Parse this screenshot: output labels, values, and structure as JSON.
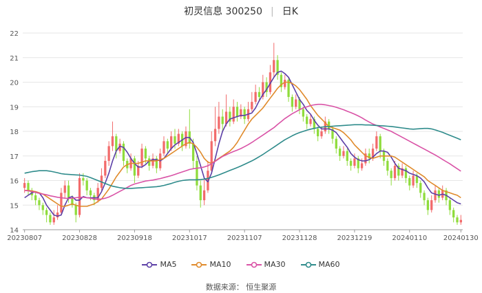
{
  "title": {
    "name": "初灵信息 300250",
    "period": "日K"
  },
  "legend": [
    {
      "label": "MA5",
      "color": "#5b3ea6"
    },
    {
      "label": "MA10",
      "color": "#e08a2a"
    },
    {
      "label": "MA30",
      "color": "#d952a6"
    },
    {
      "label": "MA60",
      "color": "#2e8b8b"
    }
  ],
  "source": "数据来源： 恒生聚源",
  "colors": {
    "up": "#f26b6b",
    "down": "#8fdc3c",
    "grid": "#e6e6e6",
    "axis": "#999999"
  },
  "chart_data": {
    "type": "candlestick",
    "y_ticks": [
      14,
      15,
      16,
      17,
      18,
      19,
      20,
      21,
      22
    ],
    "ylim": [
      14,
      22
    ],
    "x_tick_labels": [
      "20230807",
      "20230828",
      "20230918",
      "20231017",
      "20231107",
      "20231128",
      "20231219",
      "20240110",
      "20240130"
    ],
    "x_tick_index": [
      0,
      15,
      30,
      45,
      60,
      75,
      90,
      105,
      119
    ],
    "candles": [
      [
        15.7,
        15.9,
        15.5,
        16.1
      ],
      [
        15.9,
        15.6,
        15.4,
        16.0
      ],
      [
        15.6,
        15.4,
        15.2,
        15.7
      ],
      [
        15.4,
        15.2,
        15.0,
        15.5
      ],
      [
        15.2,
        15.0,
        14.8,
        15.3
      ],
      [
        15.0,
        14.8,
        14.6,
        15.1
      ],
      [
        14.8,
        14.6,
        14.3,
        14.9
      ],
      [
        14.6,
        14.3,
        14.2,
        14.7
      ],
      [
        14.3,
        14.5,
        14.2,
        14.8
      ],
      [
        14.5,
        14.7,
        14.4,
        15.0
      ],
      [
        14.7,
        15.5,
        14.6,
        15.7
      ],
      [
        15.5,
        15.8,
        15.3,
        16.0
      ],
      [
        15.8,
        15.3,
        15.1,
        16.0
      ],
      [
        15.3,
        15.0,
        14.9,
        15.4
      ],
      [
        15.0,
        14.6,
        14.3,
        15.1
      ],
      [
        14.6,
        16.1,
        14.5,
        16.3
      ],
      [
        16.1,
        16.0,
        15.8,
        16.3
      ],
      [
        16.0,
        15.6,
        15.4,
        16.1
      ],
      [
        15.6,
        15.4,
        15.2,
        15.7
      ],
      [
        15.4,
        15.2,
        15.0,
        15.5
      ],
      [
        15.2,
        15.7,
        15.1,
        15.9
      ],
      [
        15.7,
        16.2,
        15.6,
        16.5
      ],
      [
        16.2,
        16.8,
        16.1,
        17.0
      ],
      [
        16.8,
        17.4,
        16.6,
        17.6
      ],
      [
        17.4,
        17.8,
        17.2,
        18.4
      ],
      [
        17.8,
        17.2,
        16.9,
        17.9
      ],
      [
        17.2,
        17.5,
        17.1,
        17.7
      ],
      [
        17.5,
        16.8,
        16.6,
        17.6
      ],
      [
        16.8,
        16.5,
        16.3,
        16.9
      ],
      [
        16.5,
        16.9,
        16.4,
        17.1
      ],
      [
        16.9,
        16.2,
        15.9,
        17.0
      ],
      [
        16.2,
        16.6,
        16.1,
        16.8
      ],
      [
        16.6,
        17.3,
        16.5,
        17.5
      ],
      [
        17.3,
        16.9,
        16.7,
        17.4
      ],
      [
        16.9,
        16.6,
        16.4,
        17.0
      ],
      [
        16.6,
        16.9,
        16.5,
        17.1
      ],
      [
        16.9,
        16.5,
        16.3,
        17.0
      ],
      [
        16.5,
        17.1,
        16.4,
        17.3
      ],
      [
        17.1,
        17.6,
        17.0,
        17.8
      ],
      [
        17.6,
        17.3,
        17.1,
        17.7
      ],
      [
        17.3,
        17.8,
        17.2,
        18.0
      ],
      [
        17.8,
        17.5,
        17.3,
        18.1
      ],
      [
        17.5,
        17.9,
        17.4,
        18.1
      ],
      [
        17.9,
        17.4,
        17.2,
        18.0
      ],
      [
        17.4,
        18.0,
        17.3,
        18.2
      ],
      [
        18.0,
        17.5,
        17.3,
        18.9
      ],
      [
        17.5,
        16.8,
        16.5,
        17.7
      ],
      [
        16.8,
        15.8,
        15.6,
        17.0
      ],
      [
        15.8,
        15.2,
        14.9,
        16.0
      ],
      [
        15.2,
        15.6,
        15.0,
        16.1
      ],
      [
        15.6,
        16.4,
        15.5,
        16.8
      ],
      [
        16.4,
        17.6,
        16.3,
        18.0
      ],
      [
        17.6,
        18.1,
        17.4,
        19.0
      ],
      [
        18.1,
        18.6,
        17.9,
        19.2
      ],
      [
        18.6,
        18.3,
        18.0,
        18.9
      ],
      [
        18.3,
        18.8,
        18.2,
        19.5
      ],
      [
        18.8,
        18.4,
        18.2,
        19.0
      ],
      [
        18.4,
        19.0,
        18.3,
        19.3
      ],
      [
        19.0,
        18.6,
        18.4,
        19.2
      ],
      [
        18.6,
        18.9,
        18.5,
        19.1
      ],
      [
        18.9,
        18.5,
        18.3,
        19.0
      ],
      [
        18.5,
        18.9,
        18.4,
        19.2
      ],
      [
        18.9,
        19.2,
        18.8,
        19.6
      ],
      [
        19.2,
        19.6,
        19.1,
        19.9
      ],
      [
        19.6,
        19.4,
        19.2,
        19.8
      ],
      [
        19.4,
        20.0,
        19.3,
        20.3
      ],
      [
        20.0,
        19.6,
        19.4,
        20.2
      ],
      [
        19.6,
        20.4,
        19.5,
        20.7
      ],
      [
        20.4,
        20.9,
        20.2,
        21.6
      ],
      [
        20.9,
        20.3,
        20.1,
        21.1
      ],
      [
        20.3,
        19.8,
        19.6,
        20.4
      ],
      [
        19.8,
        20.1,
        19.7,
        20.3
      ],
      [
        20.1,
        19.4,
        19.2,
        20.2
      ],
      [
        19.4,
        19.0,
        18.8,
        19.5
      ],
      [
        19.0,
        19.3,
        18.9,
        19.5
      ],
      [
        19.3,
        18.9,
        18.7,
        19.4
      ],
      [
        18.9,
        18.6,
        18.4,
        19.0
      ],
      [
        18.6,
        18.3,
        18.1,
        18.7
      ],
      [
        18.3,
        18.5,
        18.2,
        18.7
      ],
      [
        18.5,
        18.1,
        17.9,
        18.6
      ],
      [
        18.1,
        17.8,
        17.6,
        18.2
      ],
      [
        17.8,
        18.0,
        17.7,
        18.2
      ],
      [
        18.0,
        18.4,
        17.9,
        18.6
      ],
      [
        18.4,
        18.1,
        17.9,
        18.5
      ],
      [
        18.1,
        17.7,
        17.5,
        18.2
      ],
      [
        17.7,
        17.3,
        17.1,
        17.8
      ],
      [
        17.3,
        17.0,
        16.8,
        17.4
      ],
      [
        17.0,
        17.2,
        16.9,
        17.4
      ],
      [
        17.2,
        16.8,
        16.6,
        17.3
      ],
      [
        16.8,
        16.6,
        16.4,
        16.9
      ],
      [
        16.6,
        16.9,
        16.5,
        17.1
      ],
      [
        16.9,
        16.5,
        16.3,
        17.0
      ],
      [
        16.5,
        16.7,
        16.4,
        16.9
      ],
      [
        16.7,
        17.1,
        16.6,
        17.3
      ],
      [
        17.1,
        16.9,
        16.7,
        17.3
      ],
      [
        16.9,
        17.3,
        16.8,
        17.5
      ],
      [
        17.3,
        17.8,
        17.2,
        18.0
      ],
      [
        17.8,
        17.2,
        16.9,
        17.9
      ],
      [
        17.2,
        16.8,
        16.6,
        17.3
      ],
      [
        16.8,
        16.4,
        16.2,
        16.9
      ],
      [
        16.4,
        16.1,
        15.8,
        16.5
      ],
      [
        16.1,
        16.6,
        16.0,
        16.8
      ],
      [
        16.6,
        16.2,
        16.0,
        16.7
      ],
      [
        16.2,
        16.5,
        16.1,
        16.7
      ],
      [
        16.5,
        16.1,
        15.9,
        16.6
      ],
      [
        16.1,
        15.8,
        15.6,
        16.2
      ],
      [
        15.8,
        16.2,
        15.7,
        16.4
      ],
      [
        16.2,
        15.9,
        15.7,
        16.3
      ],
      [
        15.9,
        15.5,
        15.3,
        16.0
      ],
      [
        15.5,
        15.2,
        15.0,
        15.6
      ],
      [
        15.2,
        14.8,
        14.6,
        15.3
      ],
      [
        14.8,
        15.2,
        14.7,
        15.4
      ],
      [
        15.2,
        15.6,
        15.1,
        15.8
      ],
      [
        15.6,
        15.3,
        15.1,
        15.7
      ],
      [
        15.3,
        15.6,
        15.2,
        15.8
      ],
      [
        15.6,
        15.2,
        15.0,
        15.7
      ],
      [
        15.2,
        14.8,
        14.6,
        15.3
      ],
      [
        14.8,
        14.5,
        14.3,
        14.9
      ],
      [
        14.5,
        14.3,
        14.2,
        14.6
      ],
      [
        14.3,
        14.4,
        14.2,
        14.6
      ]
    ],
    "ma5": [
      15.3,
      15.4,
      15.5,
      15.55,
      15.5,
      15.3,
      15.0,
      14.8,
      14.6,
      14.55,
      14.6,
      15.0,
      15.3,
      15.35,
      15.2,
      15.2,
      15.35,
      15.3,
      15.3,
      15.3,
      15.3,
      15.55,
      15.9,
      16.3,
      16.8,
      17.2,
      17.4,
      17.35,
      17.15,
      16.9,
      16.7,
      16.55,
      16.55,
      16.65,
      16.8,
      16.85,
      16.85,
      16.8,
      16.9,
      17.1,
      17.3,
      17.45,
      17.55,
      17.65,
      17.75,
      17.75,
      17.55,
      17.1,
      16.6,
      16.1,
      15.95,
      16.3,
      16.9,
      17.5,
      18.0,
      18.3,
      18.5,
      18.55,
      18.6,
      18.65,
      18.65,
      18.7,
      18.75,
      18.95,
      19.25,
      19.5,
      19.7,
      19.95,
      20.2,
      20.4,
      20.45,
      20.35,
      20.2,
      19.9,
      19.6,
      19.3,
      19.1,
      18.85,
      18.7,
      18.45,
      18.25,
      18.1,
      18.1,
      18.1,
      18.05,
      17.95,
      17.75,
      17.55,
      17.35,
      17.1,
      16.95,
      16.85,
      16.8,
      16.8,
      16.85,
      16.95,
      17.1,
      17.2,
      17.2,
      17.15,
      16.95,
      16.7,
      16.5,
      16.45,
      16.4,
      16.3,
      16.25,
      16.2,
      16.1,
      15.95,
      15.7,
      15.5,
      15.45,
      15.4,
      15.45,
      15.4,
      15.3,
      15.2,
      15.1,
      15.05
    ],
    "ma10": [
      15.6,
      15.6,
      15.58,
      15.55,
      15.5,
      15.45,
      15.35,
      15.25,
      15.15,
      15.05,
      14.95,
      14.95,
      15.0,
      15.05,
      15.0,
      14.95,
      14.95,
      14.95,
      15.0,
      15.05,
      15.15,
      15.25,
      15.45,
      15.65,
      15.9,
      16.15,
      16.35,
      16.55,
      16.65,
      16.7,
      16.7,
      16.7,
      16.75,
      16.8,
      16.8,
      16.8,
      16.8,
      16.85,
      16.9,
      17.0,
      17.1,
      17.2,
      17.3,
      17.4,
      17.5,
      17.55,
      17.5,
      17.35,
      17.15,
      16.9,
      16.75,
      16.7,
      16.8,
      16.9,
      17.0,
      17.1,
      17.2,
      17.35,
      17.55,
      17.8,
      18.05,
      18.3,
      18.5,
      18.65,
      18.8,
      18.95,
      19.15,
      19.35,
      19.55,
      19.75,
      19.9,
      20.0,
      20.0,
      19.95,
      19.85,
      19.7,
      19.5,
      19.3,
      19.05,
      18.85,
      18.65,
      18.5,
      18.35,
      18.2,
      18.15,
      18.1,
      18.05,
      17.95,
      17.8,
      17.65,
      17.45,
      17.3,
      17.15,
      17.0,
      16.95,
      16.9,
      16.95,
      17.0,
      17.0,
      17.0,
      17.0,
      16.95,
      16.85,
      16.75,
      16.65,
      16.55,
      16.45,
      16.35,
      16.25,
      16.15,
      16.0,
      15.9,
      15.8,
      15.7,
      15.6,
      15.55,
      15.5,
      15.45,
      15.4,
      15.3
    ],
    "ma30": [
      15.6,
      15.58,
      15.55,
      15.52,
      15.48,
      15.45,
      15.42,
      15.38,
      15.35,
      15.32,
      15.3,
      15.28,
      15.27,
      15.28,
      15.3,
      15.32,
      15.32,
      15.3,
      15.28,
      15.25,
      15.24,
      15.25,
      15.28,
      15.33,
      15.4,
      15.48,
      15.56,
      15.64,
      15.72,
      15.8,
      15.86,
      15.9,
      15.94,
      15.98,
      16.0,
      16.02,
      16.05,
      16.08,
      16.12,
      16.16,
      16.2,
      16.25,
      16.3,
      16.35,
      16.4,
      16.45,
      16.48,
      16.5,
      16.52,
      16.55,
      16.6,
      16.68,
      16.78,
      16.88,
      16.98,
      17.05,
      17.12,
      17.18,
      17.24,
      17.3,
      17.38,
      17.46,
      17.55,
      17.65,
      17.75,
      17.85,
      17.95,
      18.05,
      18.15,
      18.28,
      18.4,
      18.52,
      18.62,
      18.72,
      18.8,
      18.88,
      18.95,
      19.0,
      19.05,
      19.08,
      19.1,
      19.1,
      19.08,
      19.05,
      19.02,
      18.98,
      18.93,
      18.88,
      18.82,
      18.76,
      18.7,
      18.63,
      18.55,
      18.46,
      18.38,
      18.3,
      18.24,
      18.18,
      18.12,
      18.06,
      18.0,
      17.92,
      17.84,
      17.76,
      17.68,
      17.6,
      17.52,
      17.44,
      17.36,
      17.28,
      17.2,
      17.12,
      17.04,
      16.95,
      16.86,
      16.77,
      16.68,
      16.58,
      16.48,
      16.38
    ],
    "ma60": [
      16.3,
      16.33,
      16.36,
      16.38,
      16.4,
      16.4,
      16.4,
      16.38,
      16.35,
      16.32,
      16.28,
      16.26,
      16.25,
      16.24,
      16.23,
      16.22,
      16.2,
      16.17,
      16.12,
      16.06,
      16.0,
      15.94,
      15.88,
      15.82,
      15.77,
      15.74,
      15.71,
      15.69,
      15.68,
      15.68,
      15.69,
      15.7,
      15.71,
      15.72,
      15.73,
      15.74,
      15.75,
      15.77,
      15.8,
      15.84,
      15.88,
      15.93,
      15.97,
      16.0,
      16.02,
      16.03,
      16.03,
      16.03,
      16.04,
      16.06,
      16.09,
      16.13,
      16.18,
      16.23,
      16.29,
      16.35,
      16.41,
      16.47,
      16.53,
      16.59,
      16.66,
      16.73,
      16.8,
      16.88,
      16.97,
      17.06,
      17.16,
      17.26,
      17.36,
      17.46,
      17.56,
      17.66,
      17.74,
      17.82,
      17.89,
      17.95,
      18.0,
      18.05,
      18.09,
      18.12,
      18.15,
      18.17,
      18.19,
      18.2,
      18.21,
      18.22,
      18.23,
      18.24,
      18.25,
      18.26,
      18.27,
      18.27,
      18.27,
      18.26,
      18.26,
      18.25,
      18.24,
      18.23,
      18.22,
      18.21,
      18.2,
      18.18,
      18.16,
      18.14,
      18.12,
      18.1,
      18.09,
      18.1,
      18.11,
      18.12,
      18.12,
      18.1,
      18.06,
      18.01,
      17.96,
      17.9,
      17.84,
      17.78,
      17.72,
      17.66
    ]
  }
}
